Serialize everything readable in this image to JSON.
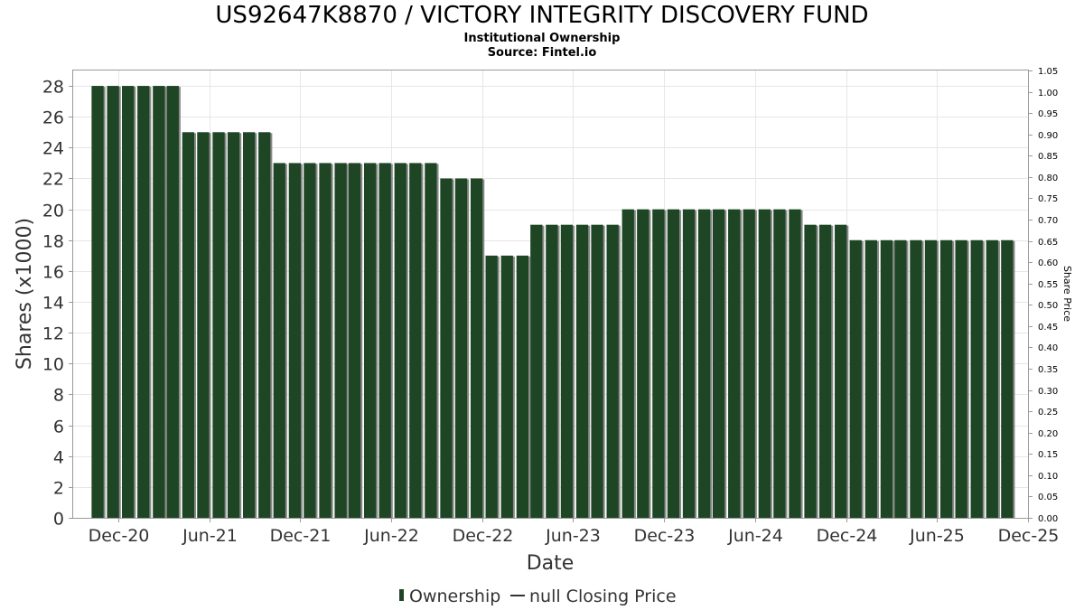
{
  "title": "US92647K8870 / VICTORY INTEGRITY DISCOVERY FUND",
  "subtitle_1": "Institutional Ownership",
  "subtitle_2": "Source: Fintel.io",
  "colors": {
    "bar": "#1e4624",
    "bar_shadow": "#8a8a8a",
    "grid": "#e6e6e6"
  },
  "chart_data": {
    "type": "bar",
    "xlabel": "Date",
    "ylabel": "Shares (x1000)",
    "y2label": "Share Price",
    "ylim": [
      0,
      29
    ],
    "y2lim": [
      0,
      1.05
    ],
    "xlim": [
      "2020-09-01",
      "2025-12-01"
    ],
    "grid": true,
    "legend_position": "bottom",
    "legend": [
      "Ownership",
      "null Closing Price"
    ],
    "y_ticks": [
      0,
      2,
      4,
      6,
      8,
      10,
      12,
      14,
      16,
      18,
      20,
      22,
      24,
      26,
      28
    ],
    "y2_ticks": [
      "0.00",
      "0.05",
      "0.10",
      "0.15",
      "0.20",
      "0.25",
      "0.30",
      "0.35",
      "0.40",
      "0.45",
      "0.50",
      "0.55",
      "0.60",
      "0.65",
      "0.70",
      "0.75",
      "0.80",
      "0.85",
      "0.90",
      "0.95",
      "1.00",
      "1.05"
    ],
    "x_ticks": [
      {
        "label": "Dec-20",
        "date": "2020-12-01"
      },
      {
        "label": "Jun-21",
        "date": "2021-06-01"
      },
      {
        "label": "Dec-21",
        "date": "2021-12-01"
      },
      {
        "label": "Jun-22",
        "date": "2022-06-01"
      },
      {
        "label": "Dec-22",
        "date": "2022-12-01"
      },
      {
        "label": "Jun-23",
        "date": "2023-06-01"
      },
      {
        "label": "Dec-23",
        "date": "2023-12-01"
      },
      {
        "label": "Jun-24",
        "date": "2024-06-01"
      },
      {
        "label": "Dec-24",
        "date": "2024-12-01"
      },
      {
        "label": "Jun-25",
        "date": "2025-06-01"
      },
      {
        "label": "Dec-25",
        "date": "2025-12-01"
      }
    ],
    "series": [
      {
        "name": "Ownership",
        "points": [
          {
            "date": "2020-10-20",
            "value": 28
          },
          {
            "date": "2020-11-20",
            "value": 28
          },
          {
            "date": "2020-12-20",
            "value": 28
          },
          {
            "date": "2021-01-20",
            "value": 28
          },
          {
            "date": "2021-02-20",
            "value": 28
          },
          {
            "date": "2021-03-20",
            "value": 28
          },
          {
            "date": "2021-04-20",
            "value": 25
          },
          {
            "date": "2021-05-20",
            "value": 25
          },
          {
            "date": "2021-06-20",
            "value": 25
          },
          {
            "date": "2021-07-20",
            "value": 25
          },
          {
            "date": "2021-08-20",
            "value": 25
          },
          {
            "date": "2021-09-20",
            "value": 25
          },
          {
            "date": "2021-10-20",
            "value": 23
          },
          {
            "date": "2021-11-20",
            "value": 23
          },
          {
            "date": "2021-12-20",
            "value": 23
          },
          {
            "date": "2022-01-20",
            "value": 23
          },
          {
            "date": "2022-02-20",
            "value": 23
          },
          {
            "date": "2022-03-20",
            "value": 23
          },
          {
            "date": "2022-04-20",
            "value": 23
          },
          {
            "date": "2022-05-20",
            "value": 23
          },
          {
            "date": "2022-06-20",
            "value": 23
          },
          {
            "date": "2022-07-20",
            "value": 23
          },
          {
            "date": "2022-08-20",
            "value": 23
          },
          {
            "date": "2022-09-20",
            "value": 22
          },
          {
            "date": "2022-10-20",
            "value": 22
          },
          {
            "date": "2022-11-20",
            "value": 22
          },
          {
            "date": "2022-12-20",
            "value": 17
          },
          {
            "date": "2023-01-20",
            "value": 17
          },
          {
            "date": "2023-02-20",
            "value": 17
          },
          {
            "date": "2023-03-20",
            "value": 19
          },
          {
            "date": "2023-04-20",
            "value": 19
          },
          {
            "date": "2023-05-20",
            "value": 19
          },
          {
            "date": "2023-06-20",
            "value": 19
          },
          {
            "date": "2023-07-20",
            "value": 19
          },
          {
            "date": "2023-08-20",
            "value": 19
          },
          {
            "date": "2023-09-20",
            "value": 20
          },
          {
            "date": "2023-10-20",
            "value": 20
          },
          {
            "date": "2023-11-20",
            "value": 20
          },
          {
            "date": "2023-12-20",
            "value": 20
          },
          {
            "date": "2024-01-20",
            "value": 20
          },
          {
            "date": "2024-02-20",
            "value": 20
          },
          {
            "date": "2024-03-20",
            "value": 20
          },
          {
            "date": "2024-04-20",
            "value": 20
          },
          {
            "date": "2024-05-20",
            "value": 20
          },
          {
            "date": "2024-06-20",
            "value": 20
          },
          {
            "date": "2024-07-20",
            "value": 20
          },
          {
            "date": "2024-08-20",
            "value": 20
          },
          {
            "date": "2024-09-20",
            "value": 19
          },
          {
            "date": "2024-10-20",
            "value": 19
          },
          {
            "date": "2024-11-20",
            "value": 19
          },
          {
            "date": "2024-12-20",
            "value": 18
          },
          {
            "date": "2025-01-20",
            "value": 18
          },
          {
            "date": "2025-02-20",
            "value": 18
          },
          {
            "date": "2025-03-20",
            "value": 18
          },
          {
            "date": "2025-04-20",
            "value": 18
          },
          {
            "date": "2025-05-20",
            "value": 18
          },
          {
            "date": "2025-06-20",
            "value": 18
          },
          {
            "date": "2025-07-20",
            "value": 18
          },
          {
            "date": "2025-08-20",
            "value": 18
          },
          {
            "date": "2025-09-20",
            "value": 18
          },
          {
            "date": "2025-10-20",
            "value": 18
          }
        ]
      },
      {
        "name": "null Closing Price",
        "points": []
      }
    ]
  }
}
